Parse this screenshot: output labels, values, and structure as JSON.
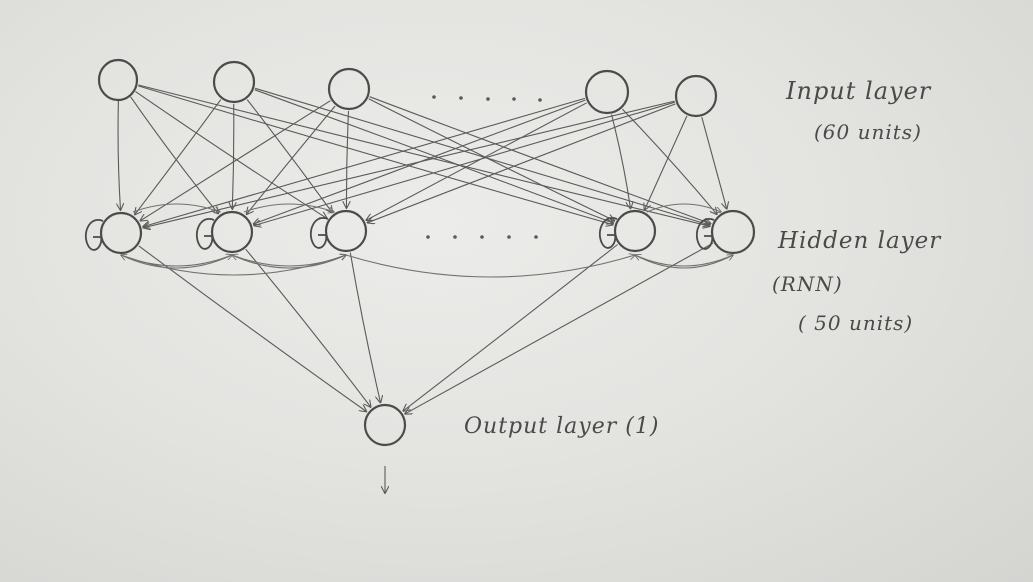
{
  "layers": {
    "input": {
      "label": "Input layer",
      "units": "(60 units)"
    },
    "hidden": {
      "label": "Hidden layer",
      "type": "(RNN)",
      "units": "( 50 units)"
    },
    "output": {
      "label": "Output layer (1)"
    }
  },
  "colors": {
    "paper": "#e6e6e3",
    "pencil": "#4b4b4b"
  }
}
